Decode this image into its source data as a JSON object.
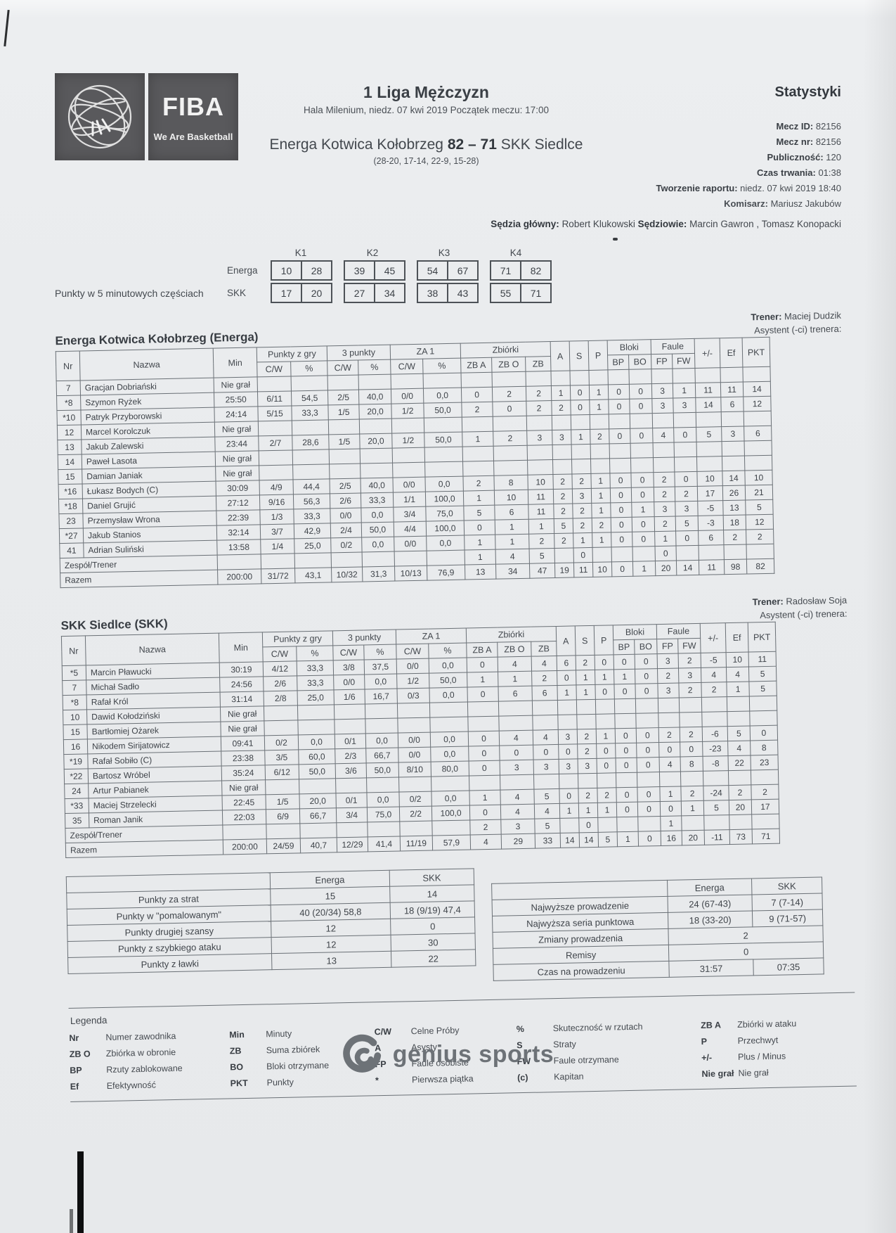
{
  "header": {
    "logo": {
      "fiba_label": "FIBA",
      "tagline": "We Are Basketball"
    },
    "league": "1 Liga Mężczyzn",
    "venue_line": "Hala Milenium, niedz. 07 kwi 2019 Początek meczu: 17:00",
    "match": {
      "home": "Energa Kotwica Kołobrzeg",
      "score": "82 – 71",
      "away": "SKK Siedlce"
    },
    "quarter_breaks": "(28-20, 17-14, 22-9, 15-28)",
    "stats_title": "Statystyki",
    "meta": [
      {
        "label": "Mecz ID:",
        "value": "82156"
      },
      {
        "label": "Mecz nr:",
        "value": "82156"
      },
      {
        "label": "Publiczność:",
        "value": "120"
      },
      {
        "label": "Czas trwania:",
        "value": "01:38"
      },
      {
        "label": "Tworzenie raportu:",
        "value": "niedz. 07 kwi 2019 18:40"
      }
    ],
    "commissioner": {
      "label": "Komisarz:",
      "value": "Mariusz Jakubów"
    },
    "referees": {
      "label1": "Sędzia główny:",
      "value1": "Robert Klukowski",
      "label2": "Sędziowie:",
      "value2": "Marcin Gawron , Tomasz Konopacki"
    }
  },
  "quarter_points": {
    "title": "Punkty w 5 minutowych częściach",
    "columns": [
      "K1",
      "K2",
      "K3",
      "K4"
    ],
    "rows": [
      {
        "team": "Energa",
        "values": [
          [
            "10",
            "28"
          ],
          [
            "39",
            "45"
          ],
          [
            "54",
            "67"
          ],
          [
            "71",
            "82"
          ]
        ]
      },
      {
        "team": "SKK",
        "values": [
          [
            "17",
            "20"
          ],
          [
            "27",
            "34"
          ],
          [
            "38",
            "43"
          ],
          [
            "55",
            "71"
          ]
        ]
      }
    ]
  },
  "stats_header": {
    "nr": "Nr",
    "name": "Nazwa",
    "min": "Min",
    "points_group": "Punkty z gry",
    "three_group": "3 punkty",
    "ft_group": "ZA 1",
    "reb_group": "Zbiórki",
    "cw": "C/W",
    "pct": "%",
    "zba": "ZB A",
    "zbo": "ZB O",
    "zb": "ZB",
    "a": "A",
    "s": "S",
    "p": "P",
    "blocks_group": "Bloki",
    "fouls_group": "Faule",
    "bp": "BP",
    "bo": "BO",
    "fp": "FP",
    "fw": "FW",
    "pm": "+/-",
    "ef": "Ef",
    "pkt": "PKT"
  },
  "dnp_text": "Nie grał",
  "teams": [
    {
      "title": "Energa Kotwica Kołobrzeg (Energa)",
      "coach_label": "Trener:",
      "coach": "Maciej Dudzik",
      "assistant_line": "Asystent (-ci) trenera:",
      "players": [
        {
          "nr": "7",
          "name": "Gracjan Dobriański",
          "dnp": true
        },
        {
          "nr": "*8",
          "name": "Szymon Ryżek",
          "min": "25:50",
          "stats": [
            "6/11",
            "54,5",
            "2/5",
            "40,0",
            "0/0",
            "0,0",
            "0",
            "2",
            "2",
            "1",
            "0",
            "1",
            "0",
            "0",
            "3",
            "1",
            "11",
            "11",
            "14"
          ]
        },
        {
          "nr": "*10",
          "name": "Patryk Przyborowski",
          "min": "24:14",
          "stats": [
            "5/15",
            "33,3",
            "1/5",
            "20,0",
            "1/2",
            "50,0",
            "2",
            "0",
            "2",
            "2",
            "0",
            "1",
            "0",
            "0",
            "3",
            "3",
            "14",
            "6",
            "12"
          ]
        },
        {
          "nr": "12",
          "name": "Marcel Korolczuk",
          "dnp": true
        },
        {
          "nr": "13",
          "name": "Jakub Zalewski",
          "min": "23:44",
          "stats": [
            "2/7",
            "28,6",
            "1/5",
            "20,0",
            "1/2",
            "50,0",
            "1",
            "2",
            "3",
            "3",
            "1",
            "2",
            "0",
            "0",
            "4",
            "0",
            "5",
            "3",
            "6"
          ]
        },
        {
          "nr": "14",
          "name": "Paweł Lasota",
          "dnp": true
        },
        {
          "nr": "15",
          "name": "Damian Janiak",
          "dnp": true
        },
        {
          "nr": "*16",
          "name": "Łukasz Bodych (C)",
          "min": "30:09",
          "stats": [
            "4/9",
            "44,4",
            "2/5",
            "40,0",
            "0/0",
            "0,0",
            "2",
            "8",
            "10",
            "2",
            "2",
            "1",
            "0",
            "0",
            "2",
            "0",
            "10",
            "14",
            "10"
          ]
        },
        {
          "nr": "*18",
          "name": "Daniel Grujić",
          "min": "27:12",
          "stats": [
            "9/16",
            "56,3",
            "2/6",
            "33,3",
            "1/1",
            "100,0",
            "1",
            "10",
            "11",
            "2",
            "3",
            "1",
            "0",
            "0",
            "2",
            "2",
            "17",
            "26",
            "21"
          ]
        },
        {
          "nr": "23",
          "name": "Przemysław Wrona",
          "min": "22:39",
          "stats": [
            "1/3",
            "33,3",
            "0/0",
            "0,0",
            "3/4",
            "75,0",
            "5",
            "6",
            "11",
            "2",
            "2",
            "1",
            "0",
            "1",
            "3",
            "3",
            "-5",
            "13",
            "5"
          ]
        },
        {
          "nr": "*27",
          "name": "Jakub Stanios",
          "min": "32:14",
          "stats": [
            "3/7",
            "42,9",
            "2/4",
            "50,0",
            "4/4",
            "100,0",
            "0",
            "1",
            "1",
            "5",
            "2",
            "2",
            "0",
            "0",
            "2",
            "5",
            "-3",
            "18",
            "12"
          ]
        },
        {
          "nr": "41",
          "name": "Adrian Suliński",
          "min": "13:58",
          "stats": [
            "1/4",
            "25,0",
            "0/2",
            "0,0",
            "0/0",
            "0,0",
            "1",
            "1",
            "2",
            "2",
            "1",
            "1",
            "0",
            "0",
            "1",
            "0",
            "6",
            "2",
            "2"
          ]
        }
      ],
      "team_row": {
        "label": "Zespół/Trener",
        "zba": "1",
        "zbo": "4",
        "zb": "5",
        "s": "0",
        "fp": "0"
      },
      "total_row": {
        "label": "Razem",
        "min": "200:00",
        "stats": [
          "31/72",
          "43,1",
          "10/32",
          "31,3",
          "10/13",
          "76,9",
          "13",
          "34",
          "47",
          "19",
          "11",
          "10",
          "0",
          "1",
          "20",
          "14",
          "11",
          "98",
          "82"
        ]
      }
    },
    {
      "title": "SKK Siedlce (SKK)",
      "coach_label": "Trener:",
      "coach": "Radosław Soja",
      "assistant_line": "Asystent (-ci) trenera:",
      "players": [
        {
          "nr": "*5",
          "name": "Marcin Pławucki",
          "min": "30:19",
          "stats": [
            "4/12",
            "33,3",
            "3/8",
            "37,5",
            "0/0",
            "0,0",
            "0",
            "4",
            "4",
            "6",
            "2",
            "0",
            "0",
            "0",
            "3",
            "2",
            "-5",
            "10",
            "11"
          ]
        },
        {
          "nr": "7",
          "name": "Michał Sadło",
          "min": "24:56",
          "stats": [
            "2/6",
            "33,3",
            "0/0",
            "0,0",
            "1/2",
            "50,0",
            "1",
            "1",
            "2",
            "0",
            "1",
            "1",
            "1",
            "0",
            "2",
            "3",
            "4",
            "4",
            "5"
          ]
        },
        {
          "nr": "*8",
          "name": "Rafał Król",
          "min": "31:14",
          "stats": [
            "2/8",
            "25,0",
            "1/6",
            "16,7",
            "0/3",
            "0,0",
            "0",
            "6",
            "6",
            "1",
            "1",
            "0",
            "0",
            "0",
            "3",
            "2",
            "2",
            "1",
            "5"
          ]
        },
        {
          "nr": "10",
          "name": "Dawid Kołodziński",
          "dnp": true
        },
        {
          "nr": "15",
          "name": "Bartłomiej Ożarek",
          "dnp": true
        },
        {
          "nr": "16",
          "name": "Nikodem Sirijatowicz",
          "min": "09:41",
          "stats": [
            "0/2",
            "0,0",
            "0/1",
            "0,0",
            "0/0",
            "0,0",
            "0",
            "4",
            "4",
            "3",
            "2",
            "1",
            "0",
            "0",
            "2",
            "2",
            "-6",
            "5",
            "0"
          ]
        },
        {
          "nr": "*19",
          "name": "Rafał Sobiło (C)",
          "min": "23:38",
          "stats": [
            "3/5",
            "60,0",
            "2/3",
            "66,7",
            "0/0",
            "0,0",
            "0",
            "0",
            "0",
            "0",
            "2",
            "0",
            "0",
            "0",
            "0",
            "0",
            "-23",
            "4",
            "8"
          ]
        },
        {
          "nr": "*22",
          "name": "Bartosz Wróbel",
          "min": "35:24",
          "stats": [
            "6/12",
            "50,0",
            "3/6",
            "50,0",
            "8/10",
            "80,0",
            "0",
            "3",
            "3",
            "3",
            "3",
            "0",
            "0",
            "0",
            "4",
            "8",
            "-8",
            "22",
            "23"
          ]
        },
        {
          "nr": "24",
          "name": "Artur Pabianek",
          "dnp": true
        },
        {
          "nr": "*33",
          "name": "Maciej Strzelecki",
          "min": "22:45",
          "stats": [
            "1/5",
            "20,0",
            "0/1",
            "0,0",
            "0/2",
            "0,0",
            "1",
            "4",
            "5",
            "0",
            "2",
            "2",
            "0",
            "0",
            "1",
            "2",
            "-24",
            "2",
            "2"
          ]
        },
        {
          "nr": "35",
          "name": "Roman Janik",
          "min": "22:03",
          "stats": [
            "6/9",
            "66,7",
            "3/4",
            "75,0",
            "2/2",
            "100,0",
            "0",
            "4",
            "4",
            "1",
            "1",
            "1",
            "0",
            "0",
            "0",
            "1",
            "5",
            "20",
            "17"
          ]
        }
      ],
      "team_row": {
        "label": "Zespół/Trener",
        "zba": "2",
        "zbo": "3",
        "zb": "5",
        "s": "0",
        "fp": "1"
      },
      "total_row": {
        "label": "Razem",
        "min": "200:00",
        "stats": [
          "24/59",
          "40,7",
          "12/29",
          "41,4",
          "11/19",
          "57,9",
          "4",
          "29",
          "33",
          "14",
          "14",
          "5",
          "1",
          "0",
          "16",
          "20",
          "-11",
          "73",
          "71"
        ]
      }
    }
  ],
  "summary_left": {
    "columns": [
      "Energa",
      "SKK"
    ],
    "rows": [
      {
        "label": "Punkty za strat",
        "energa": "15",
        "skk": "14"
      },
      {
        "label": "Punkty w \"pomalowanym\"",
        "energa": "40 (20/34) 58,8",
        "skk": "18 (9/19) 47,4"
      },
      {
        "label": "Punkty drugiej szansy",
        "energa": "12",
        "skk": "0"
      },
      {
        "label": "Punkty z szybkiego ataku",
        "energa": "12",
        "skk": "30"
      },
      {
        "label": "Punkty z ławki",
        "energa": "13",
        "skk": "22"
      }
    ]
  },
  "summary_right": {
    "columns": [
      "Energa",
      "SKK"
    ],
    "rows": [
      {
        "label": "Najwyższe prowadzenie",
        "energa": "24 (67-43)",
        "skk": "7 (7-14)"
      },
      {
        "label": "Najwyższa seria punktowa",
        "energa": "18 (33-20)",
        "skk": "9 (71-57)"
      },
      {
        "label": "Zmiany prowadzenia",
        "span": "2"
      },
      {
        "label": "Remisy",
        "span": "0"
      },
      {
        "label": "Czas na prowadzeniu",
        "energa": "31:57",
        "skk": "07:35"
      }
    ]
  },
  "legend": {
    "title": "Legenda",
    "entries": [
      {
        "abbr": "Nr",
        "text": "Numer zawodnika"
      },
      {
        "abbr": "Min",
        "text": "Minuty"
      },
      {
        "abbr": "C/W",
        "text": "Celne Próby"
      },
      {
        "abbr": "%",
        "text": "Skuteczność w rzutach"
      },
      {
        "abbr": "ZB A",
        "text": "Zbiórki w ataku"
      },
      {
        "abbr": "ZB O",
        "text": "Zbiórka w obronie"
      },
      {
        "abbr": "ZB",
        "text": "Suma zbiórek"
      },
      {
        "abbr": "A",
        "text": "Asysty"
      },
      {
        "abbr": "S",
        "text": "Straty"
      },
      {
        "abbr": "P",
        "text": "Przechwyt"
      },
      {
        "abbr": "BP",
        "text": "Rzuty zablokowane"
      },
      {
        "abbr": "BO",
        "text": "Bloki otrzymane"
      },
      {
        "abbr": "FP",
        "text": "Faule osobiste"
      },
      {
        "abbr": "FW",
        "text": "Faule otrzymane"
      },
      {
        "abbr": "+/-",
        "text": "Plus / Minus"
      },
      {
        "abbr": "Ef",
        "text": "Efektywność"
      },
      {
        "abbr": "PKT",
        "text": "Punkty"
      },
      {
        "abbr": "*",
        "text": "Pierwsza piątka"
      },
      {
        "abbr": "(c)",
        "text": "Kapitan"
      },
      {
        "abbr": "Nie grał",
        "text": "Nie grał"
      }
    ]
  },
  "footer": {
    "brand": "genius sports"
  },
  "colors": {
    "paper": "#e9ebed",
    "ink": "#3f444a",
    "line": "#6a7076",
    "logo_bg": "#59595c",
    "brand_gray": "#6d7277"
  }
}
